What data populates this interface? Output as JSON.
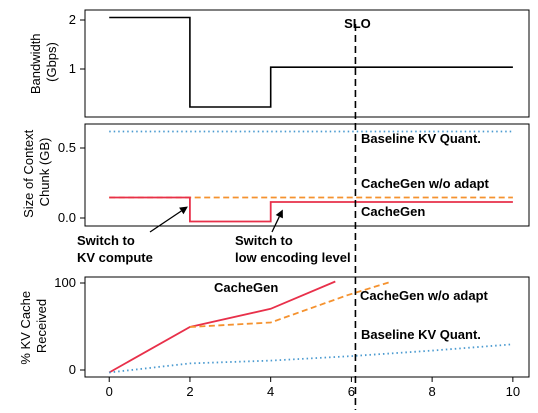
{
  "colors": {
    "bandwidth": "#000000",
    "cachegen": "#e8304a",
    "cachegen_wo_adapt": "#f5922f",
    "baseline": "#4a9ad0",
    "slo": "#000000"
  },
  "chart_data": [
    {
      "type": "line",
      "ylabel": "Bandwidth\n(Gbps)",
      "xlim": [
        -0.6,
        10.4
      ],
      "ylim": [
        0.0,
        2.15
      ],
      "yticks": [
        "1",
        "2"
      ],
      "slo_label": "SLO",
      "slo_x": 6.1,
      "series": [
        {
          "x": [
            0,
            2,
            2,
            4,
            4,
            10
          ],
          "y": [
            2,
            2,
            0.2,
            0.2,
            1,
            1
          ],
          "style": "solid",
          "color": "bandwidth"
        }
      ]
    },
    {
      "type": "line",
      "ylabel": "Size of Context\nChunk (GB)",
      "xlim": [
        -0.6,
        10.4
      ],
      "ylim": [
        -0.03,
        0.65
      ],
      "yticks": [
        "0.0",
        "0.5"
      ],
      "series": [
        {
          "name": "Baseline KV Quant.",
          "x": [
            0,
            10
          ],
          "y": [
            0.6,
            0.6
          ],
          "style": "dotted",
          "color": "baseline"
        },
        {
          "name": "CacheGen w/o adapt",
          "x": [
            0,
            10
          ],
          "y": [
            0.16,
            0.16
          ],
          "style": "dashed",
          "color": "cachegen_wo_adapt"
        },
        {
          "name": "CacheGen",
          "x": [
            0,
            2,
            2,
            4,
            4,
            10
          ],
          "y": [
            0.16,
            0.16,
            0.0,
            0.0,
            0.13,
            0.13
          ],
          "style": "solid",
          "color": "cachegen"
        }
      ],
      "annotations": [
        {
          "text": "Switch to\nKV compute",
          "arrow_to": [
            1.95,
            0.1
          ]
        },
        {
          "text": "Switch to\nlow encoding level",
          "arrow_to": [
            4.3,
            0.08
          ]
        }
      ]
    },
    {
      "type": "line",
      "ylabel": "% KV Cache\nReceived",
      "xlim": [
        -0.6,
        10.4
      ],
      "ylim": [
        -5,
        105
      ],
      "xticks": [
        "0",
        "2",
        "4",
        "6",
        "8",
        "10"
      ],
      "yticks": [
        "0",
        "100"
      ],
      "series": [
        {
          "name": "CacheGen",
          "x": [
            0,
            2,
            4,
            5.6
          ],
          "y": [
            0,
            50,
            70,
            100
          ],
          "style": "solid",
          "color": "cachegen"
        },
        {
          "name": "CacheGen w/o adapt",
          "x": [
            2,
            4,
            5.9,
            7.0
          ],
          "y": [
            50,
            55,
            85,
            100
          ],
          "style": "dashed",
          "color": "cachegen_wo_adapt"
        },
        {
          "name": "Baseline KV Quant.",
          "x": [
            0,
            2,
            4,
            6,
            8,
            10
          ],
          "y": [
            0,
            10,
            13,
            18,
            24,
            31
          ],
          "style": "dotted",
          "color": "baseline"
        }
      ]
    }
  ]
}
